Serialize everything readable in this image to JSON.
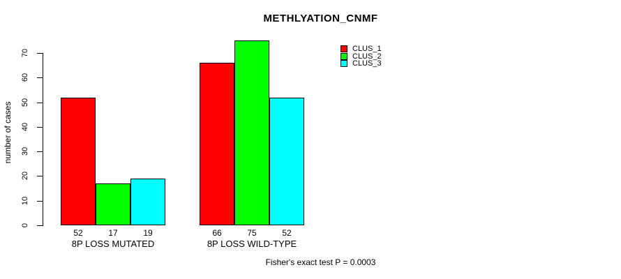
{
  "figure": {
    "title": "METHLYATION_CNMF",
    "ylabel": "number of cases",
    "footer": "Fisher's exact test P = 0.0003"
  },
  "chart_data": {
    "type": "bar",
    "title": "METHLYATION_CNMF",
    "xlabel": "",
    "ylabel": "number of cases",
    "categories": [
      "8P LOSS MUTATED",
      "8P LOSS WILD-TYPE"
    ],
    "series": [
      {
        "name": "CLUS_1",
        "color": "#ff0000",
        "values": [
          52,
          66
        ]
      },
      {
        "name": "CLUS_2",
        "color": "#00ff00",
        "values": [
          17,
          75
        ]
      },
      {
        "name": "CLUS_3",
        "color": "#00ffff",
        "values": [
          19,
          52
        ]
      }
    ],
    "bar_value_labels": [
      [
        52,
        17,
        19
      ],
      [
        66,
        75,
        52
      ]
    ],
    "yticks": [
      0,
      10,
      20,
      30,
      40,
      50,
      60,
      70
    ],
    "ylim": [
      0,
      75
    ],
    "grid": false,
    "legend_position": "top-right",
    "legend_entries": [
      "CLUS_1",
      "CLUS_2",
      "CLUS_3"
    ],
    "bar_border_color": "#000000",
    "annotation": "Fisher's exact test P = 0.0003"
  }
}
